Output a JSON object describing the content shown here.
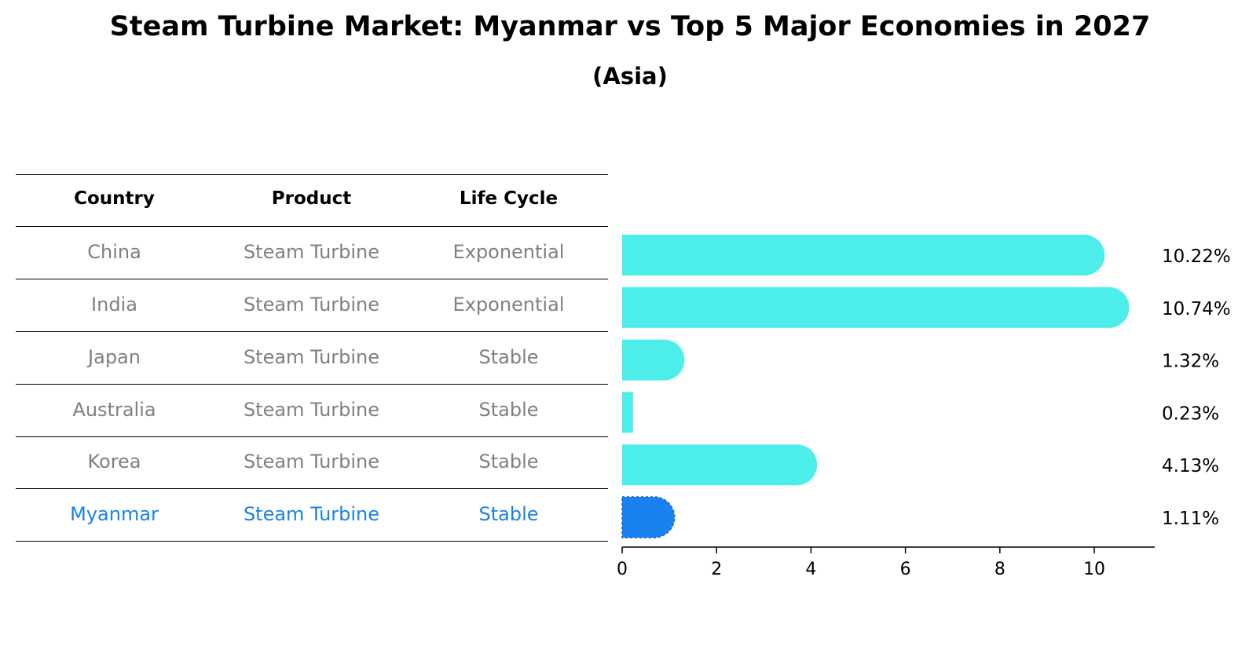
{
  "title": "Steam Turbine Market: Myanmar vs Top 5 Major Economies in 2027",
  "subtitle": "(Asia)",
  "table": {
    "headers": [
      "Country",
      "Product",
      "Life Cycle"
    ],
    "rows": [
      {
        "country": "China",
        "product": "Steam Turbine",
        "life_cycle": "Exponential"
      },
      {
        "country": "India",
        "product": "Steam Turbine",
        "life_cycle": "Exponential"
      },
      {
        "country": "Japan",
        "product": "Steam Turbine",
        "life_cycle": "Stable"
      },
      {
        "country": "Australia",
        "product": "Steam Turbine",
        "life_cycle": "Stable"
      },
      {
        "country": "Korea",
        "product": "Steam Turbine",
        "life_cycle": "Stable"
      },
      {
        "country": "Myanmar",
        "product": "Steam Turbine",
        "life_cycle": "Stable"
      }
    ],
    "highlight_row": "Myanmar"
  },
  "chart_data": {
    "type": "bar",
    "orientation": "horizontal",
    "categories": [
      "China",
      "India",
      "Japan",
      "Australia",
      "Korea",
      "Myanmar"
    ],
    "values": [
      10.22,
      10.74,
      1.32,
      0.23,
      4.13,
      1.11
    ],
    "value_labels": [
      "10.22%",
      "10.74%",
      "1.32%",
      "0.23%",
      "4.13%",
      "1.11%"
    ],
    "xlim": [
      0,
      11.28
    ],
    "xticks": [
      0,
      2,
      4,
      6,
      8,
      10
    ],
    "xlabel": "",
    "ylabel": "",
    "grid": false,
    "colors": {
      "default": "#4deeea",
      "highlight": "#1a82f0"
    },
    "highlight_category": "Myanmar"
  }
}
